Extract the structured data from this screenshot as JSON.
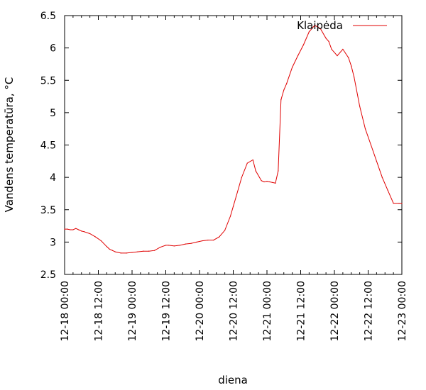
{
  "chart_data": {
    "type": "line",
    "title": "",
    "xlabel": "diena",
    "ylabel": "Vandens temperatūra,  °C",
    "ylim": [
      2.5,
      6.5
    ],
    "yticks": [
      2.5,
      3,
      3.5,
      4,
      4.5,
      5,
      5.5,
      6,
      6.5
    ],
    "ytick_labels": [
      "2.5",
      "3",
      "3.5",
      "4",
      "4.5",
      "5",
      "5.5",
      "6",
      "6.5"
    ],
    "xlim": [
      "2018-12-18 00:00",
      "2018-12-23 00:00"
    ],
    "xtick_labels": [
      "12-18 00:00",
      "12-18 12:00",
      "12-19 00:00",
      "12-19 12:00",
      "12-20 00:00",
      "12-20 12:00",
      "12-21 00:00",
      "12-21 12:00",
      "12-22 00:00",
      "12-22 12:00",
      "12-23 00:00"
    ],
    "grid": false,
    "legend_position": "top-right",
    "series": [
      {
        "name": "Klaipėda",
        "color": "#e00000",
        "x": [
          "12-18 00:00",
          "12-18 01:00",
          "12-18 02:00",
          "12-18 03:00",
          "12-18 04:00",
          "12-18 05:00",
          "12-18 06:00",
          "12-18 07:00",
          "12-18 09:00",
          "12-18 11:00",
          "12-18 13:00",
          "12-18 15:00",
          "12-18 16:00",
          "12-18 17:00",
          "12-18 18:00",
          "12-18 20:00",
          "12-18 22:00",
          "12-19 00:00",
          "12-19 02:00",
          "12-19 04:00",
          "12-19 06:00",
          "12-19 08:00",
          "12-19 10:00",
          "12-19 12:00",
          "12-19 13:00",
          "12-19 15:00",
          "12-19 17:00",
          "12-19 19:00",
          "12-19 21:00",
          "12-19 23:00",
          "12-20 01:00",
          "12-20 03:00",
          "12-20 05:00",
          "12-20 07:00",
          "12-20 09:00",
          "12-20 11:00",
          "12-20 12:00",
          "12-20 13:00",
          "12-20 15:00",
          "12-20 17:00",
          "12-20 19:00",
          "12-20 20:00",
          "12-20 22:00",
          "12-20 23:00",
          "12-21 00:00",
          "12-21 01:00",
          "12-21 02:00",
          "12-21 03:00",
          "12-21 04:00",
          "12-21 05:00",
          "12-21 06:00",
          "12-21 07:00",
          "12-21 09:00",
          "12-21 11:00",
          "12-21 13:00",
          "12-21 15:00",
          "12-21 17:00",
          "12-21 19:00",
          "12-21 21:00",
          "12-21 22:00",
          "12-21 23:00",
          "12-22 01:00",
          "12-22 03:00",
          "12-22 05:00",
          "12-22 06:00",
          "12-22 07:00",
          "12-22 09:00",
          "12-22 11:00",
          "12-22 13:00",
          "12-22 15:00",
          "12-22 17:00",
          "12-22 19:00",
          "12-22 21:00",
          "12-22 23:00",
          "12-23 00:00"
        ],
        "y": [
          3.2,
          3.2,
          3.19,
          3.19,
          3.21,
          3.19,
          3.17,
          3.16,
          3.13,
          3.08,
          3.02,
          2.93,
          2.89,
          2.87,
          2.85,
          2.83,
          2.83,
          2.84,
          2.85,
          2.86,
          2.86,
          2.87,
          2.92,
          2.95,
          2.95,
          2.94,
          2.95,
          2.97,
          2.98,
          3.0,
          3.02,
          3.03,
          3.03,
          3.08,
          3.18,
          3.4,
          3.55,
          3.7,
          4.0,
          4.22,
          4.27,
          4.1,
          3.95,
          3.93,
          3.94,
          3.93,
          3.92,
          3.91,
          4.1,
          5.2,
          5.35,
          5.45,
          5.7,
          5.88,
          6.05,
          6.25,
          6.35,
          6.3,
          6.15,
          6.1,
          5.98,
          5.88,
          5.98,
          5.85,
          5.72,
          5.55,
          5.1,
          4.75,
          4.5,
          4.25,
          4.0,
          3.8,
          3.6,
          3.6,
          3.6
        ]
      }
    ]
  }
}
